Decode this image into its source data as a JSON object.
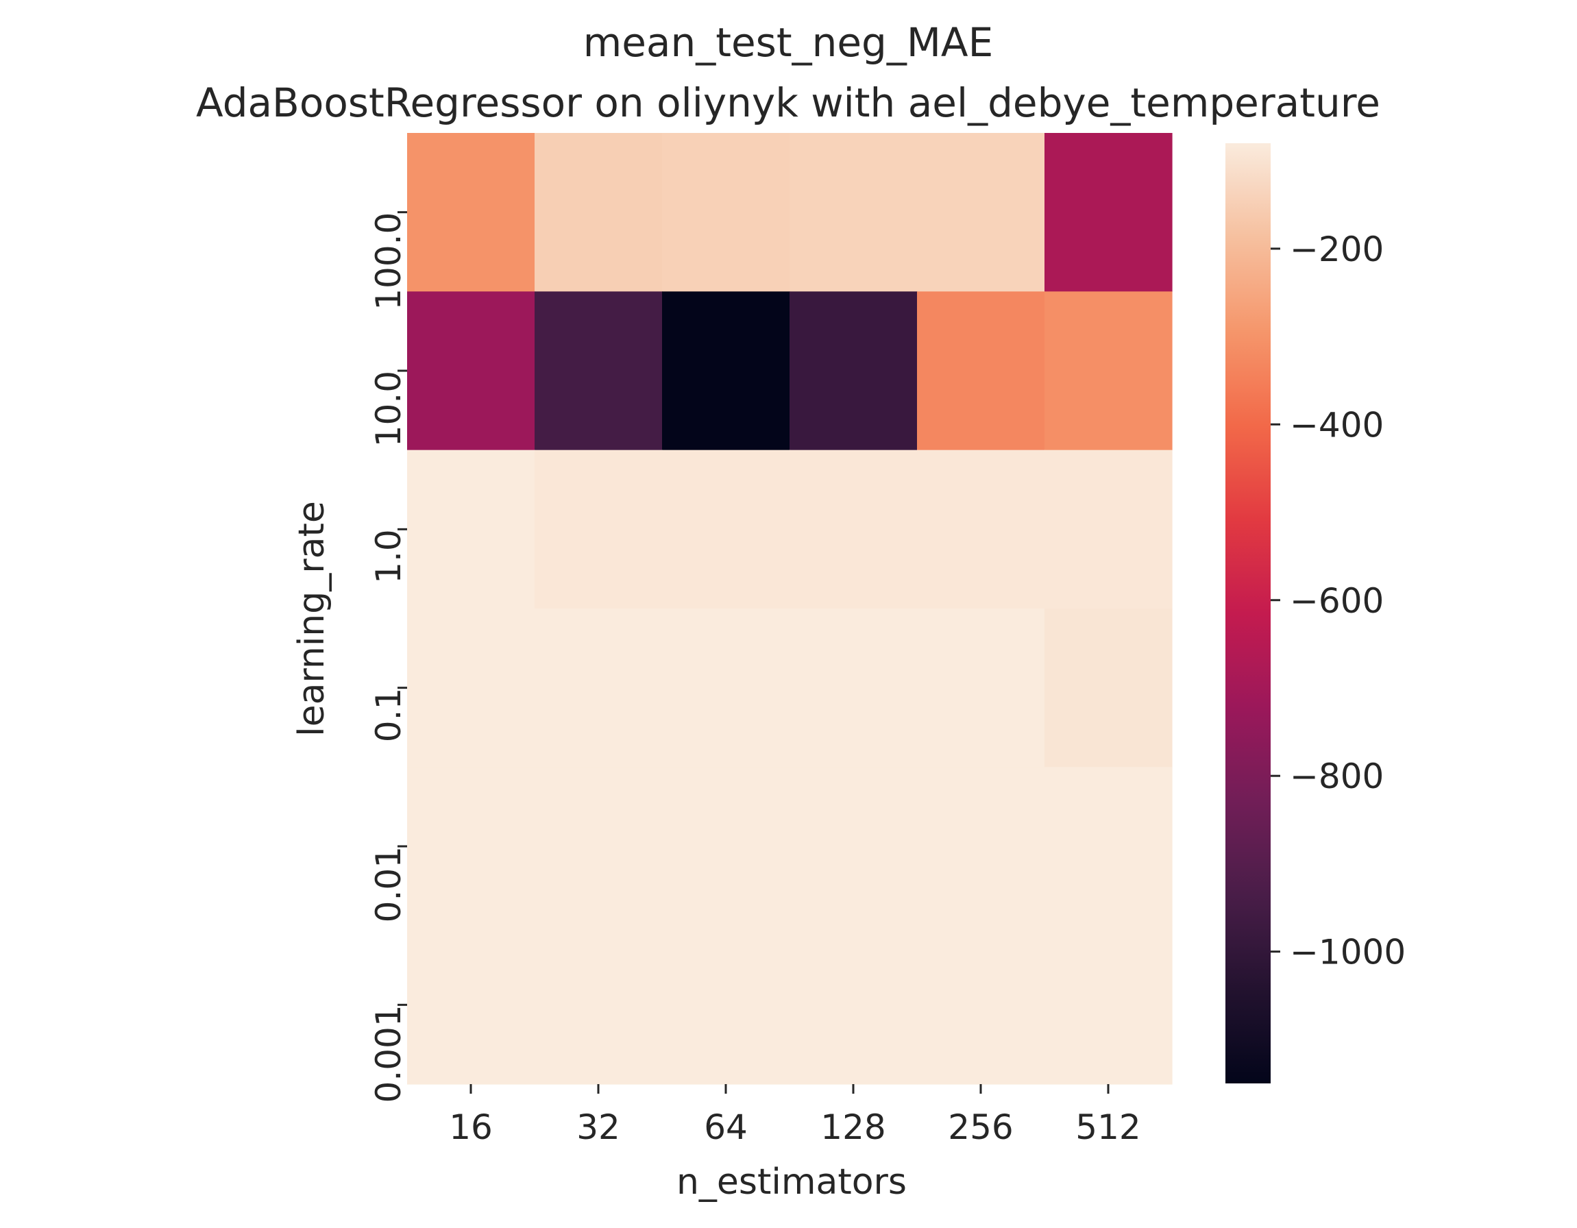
{
  "chart_data": {
    "type": "heatmap",
    "title": "mean_test_neg_MAE",
    "subtitle": "AdaBoostRegressor on oliynyk with ael_debye_temperature",
    "xlabel": "n_estimators",
    "ylabel": "learning_rate",
    "x_categories": [
      "16",
      "32",
      "64",
      "128",
      "256",
      "512"
    ],
    "y_categories": [
      "100.0",
      "10.0",
      "1.0",
      "0.1",
      "0.01",
      "0.001"
    ],
    "values": [
      [
        -300,
        -150,
        -145,
        -140,
        -140,
        -680
      ],
      [
        -720,
        -950,
        -1150,
        -980,
        -330,
        -310
      ],
      [
        -80,
        -90,
        -90,
        -90,
        -90,
        -90
      ],
      [
        -80,
        -80,
        -80,
        -80,
        -80,
        -95
      ],
      [
        -80,
        -80,
        -80,
        -80,
        -80,
        -80
      ],
      [
        -80,
        -80,
        -80,
        -80,
        -80,
        -80
      ]
    ],
    "colorbar": {
      "vmin": -1150,
      "vmax": -80,
      "ticks": [
        -200,
        -400,
        -600,
        -800,
        -1000
      ],
      "tick_labels": [
        "−200",
        "−400",
        "−600",
        "−800",
        "−1000"
      ]
    },
    "colormap": "rocket",
    "grid": false
  }
}
